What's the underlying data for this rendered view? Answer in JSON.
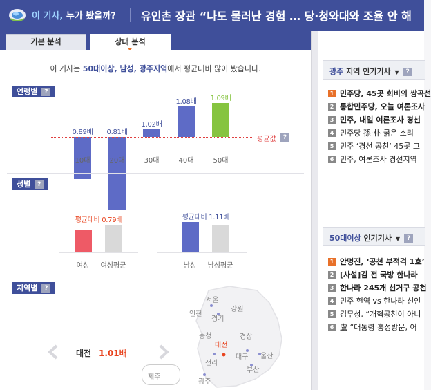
{
  "header": {
    "brand_part1": "이 기사,",
    "brand_part2": " 누가 봤을까?",
    "headline": "유인촌 장관 “나도 물러난 경험 … 당·청와대와 조율 안 해"
  },
  "tabs": [
    {
      "label": "기본 분석",
      "active": false
    },
    {
      "label": "상대 분석",
      "active": true
    }
  ],
  "summary": {
    "prefix": "이 기사는 ",
    "age": "50대이상",
    "sep1": ", ",
    "gender": "남성",
    "sep2": ", ",
    "region": "광주지역",
    "suffix": "에서 평균대비 많이 봤습니다."
  },
  "sections": {
    "age": "연령별",
    "gender": "성별",
    "region": "지역별"
  },
  "qmark": "?",
  "age_chart": {
    "type": "bar",
    "categories": [
      "10대",
      "20대",
      "30대",
      "40대",
      "50대"
    ],
    "values": [
      0.89,
      0.81,
      1.02,
      1.08,
      1.09
    ],
    "value_labels": [
      "0.89배",
      "0.81배",
      "1.02배",
      "1.08배",
      "1.09배"
    ],
    "baseline": 1.0,
    "baseline_label": "평균값",
    "colors": [
      "#5e6bc6",
      "#5e6bc6",
      "#5e6bc6",
      "#5e6bc6",
      "#86c440"
    ],
    "value_colors": [
      "#3f4f9a",
      "#3f4f9a",
      "#3f4f9a",
      "#3f4f9a",
      "#86c440"
    ]
  },
  "gender_chart": {
    "female": {
      "label": "여성",
      "avg_label": "여성평균",
      "value": 0.79,
      "value_label": "평균대비 0.79배",
      "color": "#ee5a66",
      "value_color": "#e8441f"
    },
    "male": {
      "label": "남성",
      "avg_label": "남성평균",
      "value": 1.11,
      "value_label": "평균대비 1.11배",
      "color": "#5e6bc6",
      "value_color": "#3f4f9a"
    },
    "avg_color": "#d9d9d9"
  },
  "region": {
    "current_city": "대전",
    "current_value": "1.01배",
    "labels": [
      "서울",
      "인천",
      "경기",
      "강원",
      "충청",
      "대전",
      "경상",
      "대구",
      "울산",
      "부산",
      "전라",
      "광주"
    ],
    "jeju": "제주"
  },
  "right": {
    "box1": {
      "region": "광주",
      "title": " 지역 인기기사",
      "items": [
        "민주당, 45곳 희비의 쌍곡선",
        "통합민주당, 오늘 여론조사",
        "민주, 내일 여론조사 경선",
        "민주당 孫·朴 굵은 소리",
        "민주 ‘경선 공천’ 45곳 그",
        "민주, 여론조사 경선지역"
      ],
      "bold_count": 3
    },
    "box2": {
      "region": "50대이상",
      "title": " 인기기사",
      "items": [
        "안명진, ‘공천 부적격 1호’",
        "[사설]김 전 국방 한나라",
        "한나라 245개 선거구 공천",
        "민주 현역 vs 한나라 신인",
        "김무성, “개혁공천이 아니",
        "盧 “대통령 홍성방문, 어"
      ],
      "bold_count": 3
    },
    "caret": "▼"
  }
}
